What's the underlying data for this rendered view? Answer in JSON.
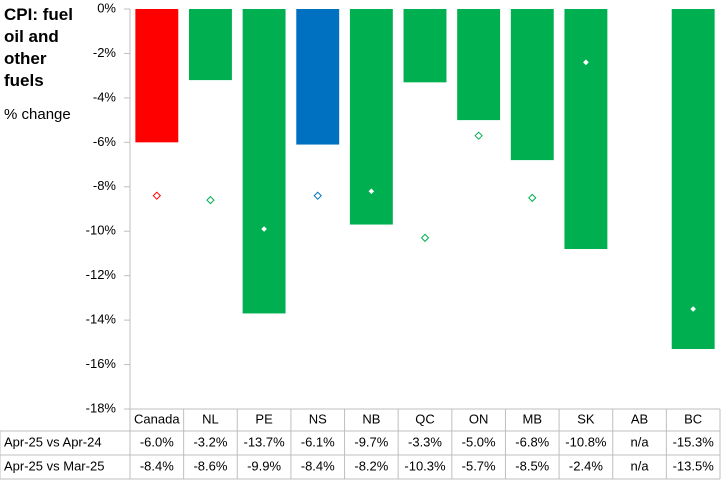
{
  "chart_data": {
    "type": "bar_marker_table",
    "title": "CPI: fuel oil and other fuels",
    "subtitle": "% change",
    "categories": [
      "Canada",
      "NL",
      "PE",
      "NS",
      "NB",
      "QC",
      "ON",
      "MB",
      "SK",
      "AB",
      "BC"
    ],
    "series": [
      {
        "name": "Apr-25 vs Apr-24",
        "mark": "bar",
        "colors": [
          "#ff0000",
          "#00b050",
          "#00b050",
          "#0070c0",
          "#00b050",
          "#00b050",
          "#00b050",
          "#00b050",
          "#00b050",
          "#00b050",
          "#00b050"
        ],
        "values": [
          -6.0,
          -3.2,
          -13.7,
          -6.1,
          -9.7,
          -3.3,
          -5.0,
          -6.8,
          -10.8,
          null,
          -15.3
        ],
        "value_labels": [
          "-6.0%",
          "-3.2%",
          "-13.7%",
          "-6.1%",
          "-9.7%",
          "-3.3%",
          "-5.0%",
          "-6.8%",
          "-10.8%",
          "n/a",
          "-15.3%"
        ]
      },
      {
        "name": "Apr-25 vs Mar-25",
        "mark": "diamond",
        "colors": [
          "#ff0000",
          "#00b050",
          "#00b050",
          "#0070c0",
          "#00b050",
          "#00b050",
          "#00b050",
          "#00b050",
          "#00b050",
          "#00b050",
          "#00b050"
        ],
        "values": [
          -8.4,
          -8.6,
          -9.9,
          -8.4,
          -8.2,
          -10.3,
          -5.7,
          -8.5,
          -2.4,
          null,
          -13.5
        ],
        "value_labels": [
          "-8.4%",
          "-8.6%",
          "-9.9%",
          "-8.4%",
          "-8.2%",
          "-10.3%",
          "-5.7%",
          "-8.5%",
          "-2.4%",
          "n/a",
          "-13.5%"
        ]
      }
    ],
    "ylim": [
      -18,
      0
    ],
    "yticks": [
      {
        "value": 0,
        "label": "0%"
      },
      {
        "value": -2,
        "label": "-2%"
      },
      {
        "value": -4,
        "label": "-4%"
      },
      {
        "value": -6,
        "label": "-6%"
      },
      {
        "value": -8,
        "label": "-8%"
      },
      {
        "value": -10,
        "label": "-10%"
      },
      {
        "value": -12,
        "label": "-12%"
      },
      {
        "value": -14,
        "label": "-14%"
      },
      {
        "value": -16,
        "label": "-16%"
      },
      {
        "value": -18,
        "label": "-18%"
      }
    ],
    "grid": false
  }
}
